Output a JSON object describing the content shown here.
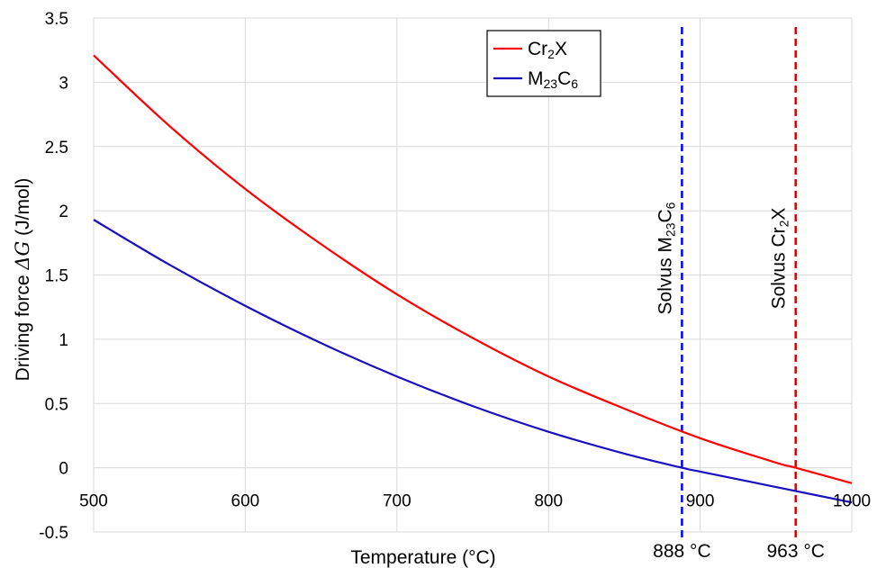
{
  "chart_data": {
    "type": "line",
    "title": "",
    "xlabel": "Temperature (°C)",
    "ylabel": {
      "prefix": "Driving force ",
      "math": "ΔG",
      "suffix": " (J/mol)"
    },
    "xlim": [
      500,
      1000
    ],
    "ylim": [
      -0.5,
      3.5
    ],
    "x_ticks": [
      500,
      600,
      700,
      800,
      900,
      1000
    ],
    "y_ticks": [
      -0.5,
      0,
      0.5,
      1,
      1.5,
      2,
      2.5,
      3,
      3.5
    ],
    "y_tick_labels": [
      "-0.5",
      "0",
      "0.5",
      "1",
      "1.5",
      "2",
      "2.5",
      "3",
      "3.5"
    ],
    "grid": true,
    "legend_position": "top-center",
    "series": [
      {
        "name": "Cr2X",
        "label_parts": [
          [
            "Cr",
            ""
          ],
          [
            "2",
            "sub"
          ],
          [
            "X",
            ""
          ]
        ],
        "color": "#ff0000",
        "x": [
          500,
          550,
          600,
          650,
          700,
          750,
          800,
          850,
          900,
          950,
          963,
          1000
        ],
        "y": [
          3.21,
          2.66,
          2.17,
          1.74,
          1.35,
          1.01,
          0.71,
          0.46,
          0.23,
          0.04,
          0.0,
          -0.12
        ]
      },
      {
        "name": "M23C6",
        "label_parts": [
          [
            "M",
            ""
          ],
          [
            "23",
            "sub"
          ],
          [
            "C",
            ""
          ],
          [
            "6",
            "sub"
          ]
        ],
        "color": "#1a0fbf",
        "x": [
          500,
          550,
          600,
          650,
          700,
          750,
          800,
          850,
          888,
          900,
          950,
          1000
        ],
        "y": [
          1.93,
          1.58,
          1.26,
          0.97,
          0.71,
          0.48,
          0.28,
          0.11,
          0.0,
          -0.03,
          -0.15,
          -0.27
        ]
      }
    ],
    "reference_lines": [
      {
        "x": 888,
        "color": "#0000ff",
        "style": "dashed",
        "label_parts": [
          [
            "Solvus M",
            ""
          ],
          [
            "23",
            "sub"
          ],
          [
            "C",
            ""
          ],
          [
            "6",
            "sub"
          ]
        ],
        "value_label": "888 °C"
      },
      {
        "x": 963,
        "color": "#dd0000",
        "style": "dashed",
        "label_parts": [
          [
            "Solvus Cr",
            ""
          ],
          [
            "2",
            "sub"
          ],
          [
            "X",
            ""
          ]
        ],
        "value_label": "963 °C"
      }
    ]
  }
}
